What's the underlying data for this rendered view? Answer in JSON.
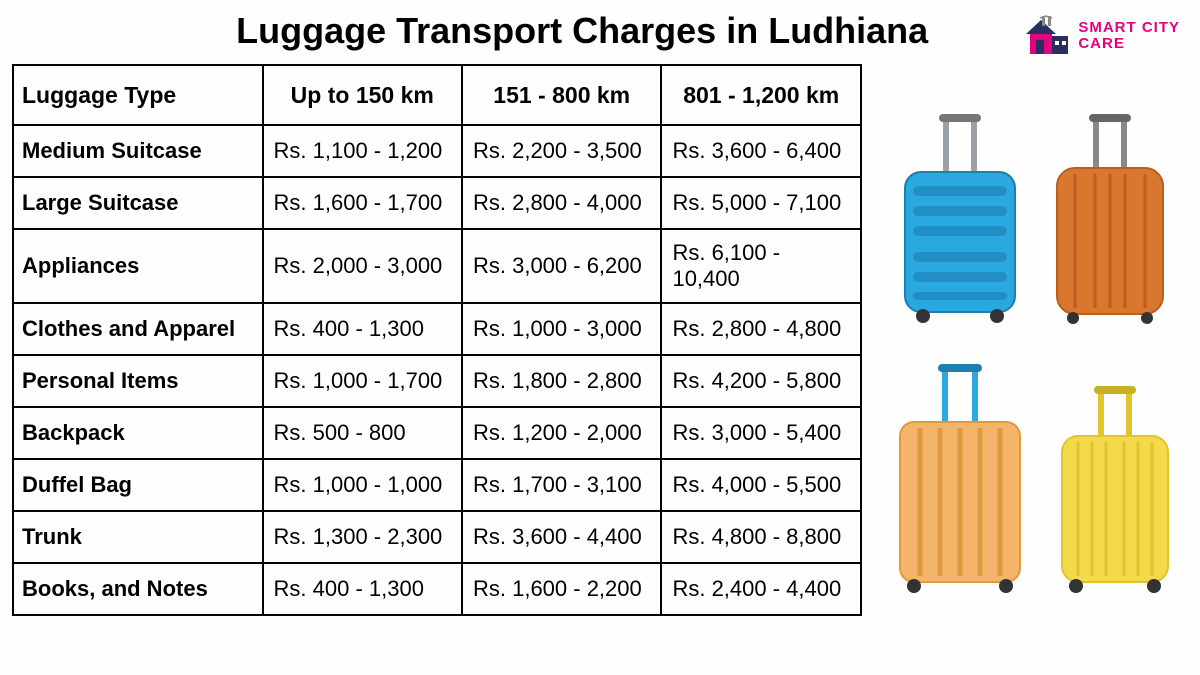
{
  "title": "Luggage Transport Charges in Ludhiana",
  "logo": {
    "line1": "SMART CITY",
    "line2": "CARE",
    "brand_color": "#e6007e",
    "house_navy": "#2a2f62"
  },
  "table": {
    "columns": [
      "Luggage Type",
      "Up to 150 km",
      "151 - 800 km",
      "801 - 1,200 km"
    ],
    "rows": [
      {
        "type": "Medium Suitcase",
        "c2": "Rs. 1,100 - 1,200",
        "c3": "Rs. 2,200 - 3,500",
        "c4": "Rs. 3,600 - 6,400"
      },
      {
        "type": "Large Suitcase",
        "c2": "Rs. 1,600 - 1,700",
        "c3": "Rs. 2,800 - 4,000",
        "c4": "Rs. 5,000 - 7,100"
      },
      {
        "type": "Appliances",
        "c2": "Rs. 2,000 - 3,000",
        "c3": "Rs. 3,000 - 6,200",
        "c4": "Rs. 6,100 - 10,400"
      },
      {
        "type": "Clothes and Apparel",
        "c2": "Rs. 400 - 1,300",
        "c3": "Rs. 1,000 - 3,000",
        "c4": "Rs. 2,800 - 4,800"
      },
      {
        "type": "Personal Items",
        "c2": "Rs. 1,000 - 1,700",
        "c3": "Rs. 1,800 - 2,800",
        "c4": "Rs. 4,200 - 5,800"
      },
      {
        "type": "Backpack",
        "c2": "Rs. 500 - 800",
        "c3": "Rs. 1,200 - 2,000",
        "c4": "Rs. 3,000 - 5,400"
      },
      {
        "type": "Duffel Bag",
        "c2": "Rs. 1,000 - 1,000",
        "c3": "Rs. 1,700 - 3,100",
        "c4": "Rs. 4,000 - 5,500"
      },
      {
        "type": "Trunk",
        "c2": "Rs. 1,300 - 2,300",
        "c3": "Rs. 3,600 - 4,400",
        "c4": "Rs. 4,800 - 8,800"
      },
      {
        "type": "Books, and Notes",
        "c2": "Rs. 400 - 1,300",
        "c3": "Rs. 1,600 - 2,200",
        "c4": "Rs. 2,400 - 4,400"
      }
    ]
  },
  "suitcases": {
    "blue": {
      "body": "#2aa8e0",
      "dark": "#1e7fb0",
      "handle": "#9aa0a6"
    },
    "orange_top": {
      "body": "#d9772e",
      "dark": "#b85f1f",
      "handle": "#888"
    },
    "orange_bottom": {
      "body": "#f4b46a",
      "dark": "#e09a3e",
      "handle": "#2aa8e0"
    },
    "yellow": {
      "body": "#f4d94a",
      "dark": "#e0c52e",
      "handle": "#e0c52e"
    }
  }
}
